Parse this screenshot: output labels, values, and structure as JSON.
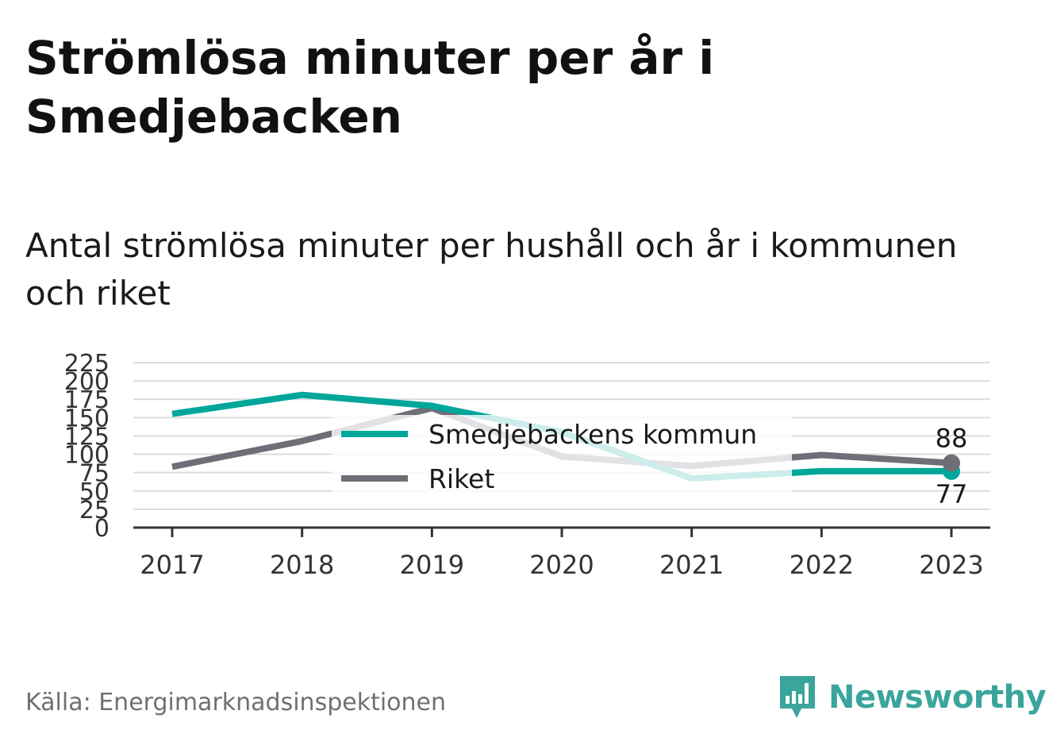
{
  "title": "Strömlösa minuter per år i Smedjebacken",
  "subtitle": "Antal strömlösa minuter per hushåll och år i kommunen och riket",
  "source": "Källa: Energimarknadsinspektionen",
  "brand": {
    "name": "Newsworthy",
    "icon": "newsworthy-bar-logo-icon",
    "color": "#3aa59c"
  },
  "colors": {
    "kommun": "#00a69a",
    "riket": "#6f6e77",
    "grid": "#dcdcdc",
    "axis": "#333333"
  },
  "chart_data": {
    "type": "line",
    "x": [
      "2017",
      "2018",
      "2019",
      "2020",
      "2021",
      "2022",
      "2023"
    ],
    "ylim": [
      0,
      225
    ],
    "yticks": [
      "0",
      "25",
      "50",
      "75",
      "100",
      "125",
      "150",
      "175",
      "200",
      "225"
    ],
    "grid": true,
    "legend_position": "center",
    "series": [
      {
        "name": "Smedjebackens kommun",
        "values": [
          155,
          181,
          166,
          130,
          67,
          77,
          77
        ],
        "end_label": "77"
      },
      {
        "name": "Riket",
        "values": [
          83,
          118,
          163,
          97,
          84,
          99,
          88
        ],
        "end_label": "88"
      }
    ]
  }
}
